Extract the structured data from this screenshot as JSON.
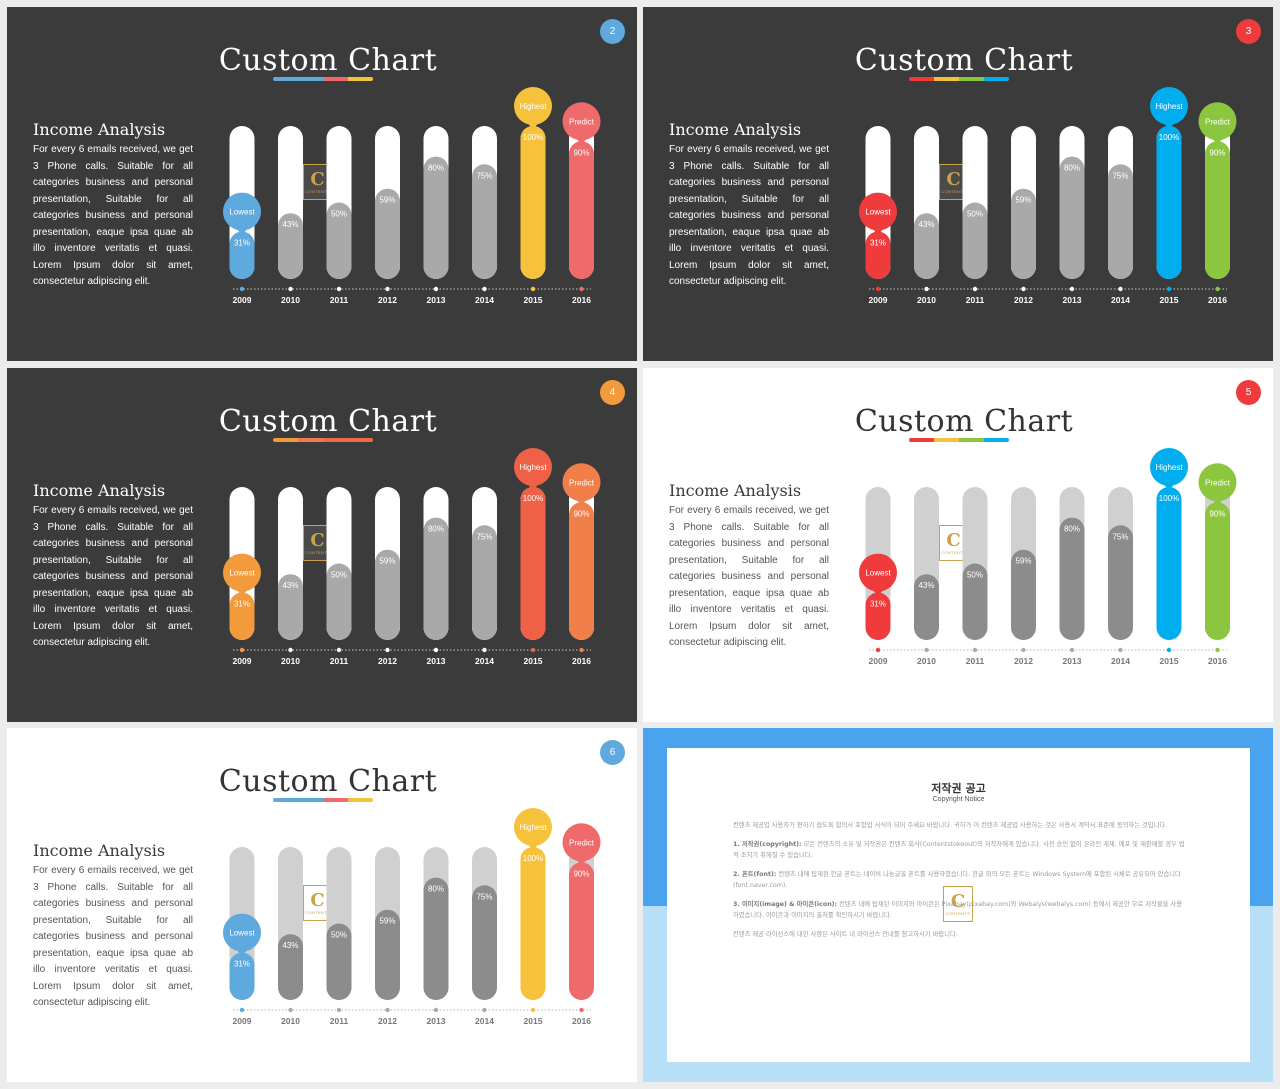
{
  "slides": [
    {
      "number": "2",
      "theme": "dark",
      "badge_color": "#5ea9dd",
      "title": "Custom Chart",
      "title_bar_colors": [
        "#5ea9dd",
        "#5ea9dd",
        "#ef6a6a",
        "#f7c23b"
      ],
      "heading": "Income Analysis",
      "body": "For every 6 emails received, we get 3 Phone calls. Suitable for all categories business and personal presentation, Suitable for all categories business and personal presentation, eaque ipsa quae ab illo inventore veritatis et quasi. Lorem Ipsum dolor sit amet, consectetur adipiscing elit.",
      "track_color": "#ffffff",
      "gray_color": "#a9a9a9",
      "lowest_color": "#5ea9dd",
      "highest_color": "#f7c23b",
      "predict_color": "#ef6a6a",
      "year_label_color": "#ffffff"
    },
    {
      "number": "3",
      "theme": "dark",
      "badge_color": "#ef3b3b",
      "title": "Custom Chart",
      "title_bar_colors": [
        "#ef3b3b",
        "#f7c23b",
        "#8cc63f",
        "#00aeef"
      ],
      "heading": "Income Analysis",
      "body": "For every 6 emails received, we get 3 Phone calls. Suitable for all categories business and personal presentation, Suitable for all categories business and personal presentation, eaque ipsa quae ab illo inventore veritatis et quasi. Lorem Ipsum dolor sit amet, consectetur adipiscing elit.",
      "track_color": "#ffffff",
      "gray_color": "#a9a9a9",
      "lowest_color": "#ef3b3b",
      "highest_color": "#00aeef",
      "predict_color": "#8cc63f",
      "year_label_color": "#ffffff"
    },
    {
      "number": "4",
      "theme": "dark",
      "badge_color": "#f39a3c",
      "title": "Custom Chart",
      "title_bar_colors": [
        "#f39a3c",
        "#f07a4a",
        "#ef6a4a",
        "#ef6a4a"
      ],
      "heading": "Income Analysis",
      "body": "For every 6 emails received, we get 3 Phone calls. Suitable for all categories business and personal presentation, Suitable for all categories business and personal presentation, eaque ipsa quae ab illo inventore veritatis et quasi. Lorem Ipsum dolor sit amet, consectetur adipiscing elit.",
      "track_color": "#ffffff",
      "gray_color": "#a9a9a9",
      "lowest_color": "#f39a3c",
      "highest_color": "#ef6147",
      "predict_color": "#f07f4a",
      "year_label_color": "#ffffff"
    },
    {
      "number": "5",
      "theme": "light",
      "badge_color": "#ef3b3b",
      "title": "Custom Chart",
      "title_bar_colors": [
        "#ef3b3b",
        "#f7c23b",
        "#8cc63f",
        "#00aeef"
      ],
      "heading": "Income Analysis",
      "body": "For every 6 emails received, we get 3 Phone calls. Suitable for all categories business and personal presentation, Suitable for all categories business and personal presentation, eaque ipsa quae ab illo inventore veritatis et quasi. Lorem Ipsum dolor sit amet, consectetur adipiscing elit.",
      "track_color": "#d0d0d0",
      "gray_color": "#8c8c8c",
      "lowest_color": "#ef3b3b",
      "highest_color": "#00aeef",
      "predict_color": "#8cc63f",
      "year_label_color": "#777777"
    },
    {
      "number": "6",
      "theme": "light",
      "badge_color": "#5ea9dd",
      "title": "Custom Chart",
      "title_bar_colors": [
        "#5ea9dd",
        "#5ea9dd",
        "#ef6a6a",
        "#f7c23b"
      ],
      "heading": "Income Analysis",
      "body": "For every 6 emails received, we get 3 Phone calls. Suitable for all categories business and personal presentation, Suitable for all categories business and personal presentation, eaque ipsa quae ab illo inventore veritatis et quasi. Lorem Ipsum dolor sit amet, consectetur adipiscing elit.",
      "track_color": "#d0d0d0",
      "gray_color": "#8c8c8c",
      "lowest_color": "#5ea9dd",
      "highest_color": "#f7c23b",
      "predict_color": "#ef6a6a",
      "year_label_color": "#777777"
    }
  ],
  "chart_data": {
    "type": "bar",
    "categories": [
      "2009",
      "2010",
      "2011",
      "2012",
      "2013",
      "2014",
      "2015",
      "2016"
    ],
    "values": [
      31,
      43,
      50,
      59,
      80,
      75,
      100,
      90
    ],
    "value_labels": [
      "31%",
      "43%",
      "50%",
      "59%",
      "80%",
      "75%",
      "100%",
      "90%"
    ],
    "ylim": [
      0,
      100
    ],
    "callouts": [
      {
        "category": "2009",
        "label": "Lowest"
      },
      {
        "category": "2015",
        "label": "Highest"
      },
      {
        "category": "2016",
        "label": "Predict"
      }
    ]
  },
  "logo": {
    "letter": "C",
    "text": "CONTENTS"
  },
  "notice": {
    "title": "저작권 공고",
    "subtitle": "Copyright Notice",
    "intro": "컨텐츠 제공업 사용자가 편하기 쉽도록 합의서 포함업 서식이 되어 주세요 바랍니다. 귀하가 이 컨텐츠 제공업 사용하는 것은 사용서 계약서 표준에 동의하는 것입니다.",
    "p1_head": "1. 저작권(copyright):",
    "p1": "모든 컨텐츠의 소유 및 저작권은 컨텐츠 회사(Contentstokeout)의 저작자에게 있습니다. 사전 승인 없이 온라인 게재, 배포 및 재판매할 경우 법적 조치가 취해질 수 있습니다.",
    "p2_head": "2. 폰트(font):",
    "p2": "컨텐츠 내에 탑재된 한글 폰트는 네이버 나눔글꼴 폰트를 사용하였습니다. 한글 외의 모든 폰트는 Windows System에 포함된 서체로 공유되어 있습니다(font.naver.com).",
    "p3_head": "3. 이미지(image) & 아이콘(icon):",
    "p3": "컨텐츠 내에 탑재된 이미지와 아이콘은 Pixabay(pixabay.com)와 Webalys(webalys.com) 등에서 제공한 무료 저작물을 사용하였습니다. 아이콘과 이미지의 출처를 확인하시기 바랍니다.",
    "closing": "컨텐츠 제공 라이선스에 대한 사항은 사이트 내 라이선스 안내를 참고하시기 바랍니다."
  }
}
